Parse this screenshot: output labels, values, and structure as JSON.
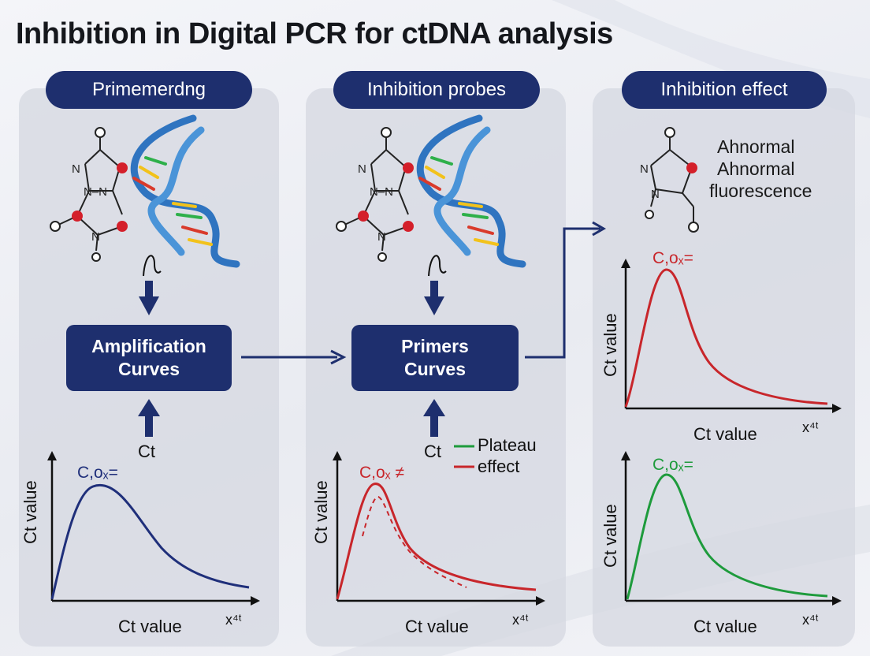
{
  "title": "Inhibition in Digital PCR for ctDNA analysis",
  "columns": [
    {
      "header": "Primemerdng",
      "box_line1": "Amplification",
      "box_line2": "Curves",
      "ct_label": "Ct"
    },
    {
      "header": "Inhibition probes",
      "box_line1": "Primers",
      "box_line2": "Curves",
      "ct_label": "Ct",
      "legend": [
        "Plateau",
        "effect"
      ]
    },
    {
      "header": "Inhibition effect",
      "note": [
        "Ahnormal",
        "Ahnormal",
        "fluorescence"
      ]
    }
  ],
  "plots": {
    "ylabel": "Ct value",
    "xlabel": "Ct value",
    "x_axis_symbol": "x⁴ᵗ",
    "peak_label_blue": "C,oₓ=",
    "peak_label_red_mid": "C,oₓ ≠",
    "peak_label_red_right": "C,oₓ=",
    "peak_label_green": "C,oₓ="
  },
  "colors": {
    "navy": "#1e2f6e",
    "blue_curve": "#1f2f7a",
    "red_curve": "#c8262b",
    "green_curve": "#1e9b3c",
    "atom_red": "#d41f2a"
  },
  "chart_data": [
    {
      "type": "line",
      "title": "",
      "xlabel": "Ct value",
      "ylabel": "Ct value",
      "series": [
        {
          "values": [
            0,
            0.95,
            0.55,
            0.15,
            0.04
          ]
        }
      ],
      "peak_label": "C,oₓ=",
      "color": "blue"
    },
    {
      "type": "line",
      "title": "",
      "xlabel": "Ct value",
      "ylabel": "Ct value",
      "series": [
        {
          "values": [
            0,
            0.95,
            0.35,
            0.1,
            0.05
          ]
        },
        {
          "values": [
            0,
            0.8,
            0.25,
            0.08,
            0.03
          ]
        }
      ],
      "legend": [
        "Plateau",
        "effect"
      ],
      "peak_label": "C,oₓ ≠",
      "color": "red"
    },
    {
      "type": "line",
      "title": "",
      "xlabel": "Ct value",
      "ylabel": "Ct value",
      "series": [
        {
          "values": [
            0,
            0.97,
            0.3,
            0.08,
            0.02
          ]
        }
      ],
      "peak_label": "C,oₓ=",
      "color": "red"
    },
    {
      "type": "line",
      "title": "",
      "xlabel": "Ct value",
      "ylabel": "Ct value",
      "series": [
        {
          "values": [
            0,
            0.97,
            0.3,
            0.07,
            0.02
          ]
        }
      ],
      "peak_label": "C,oₓ=",
      "color": "green"
    }
  ]
}
